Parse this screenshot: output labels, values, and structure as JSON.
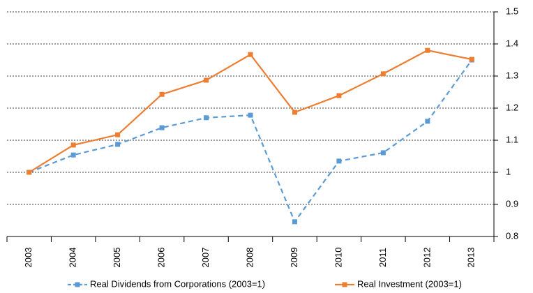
{
  "chart_data": {
    "type": "line",
    "categories": [
      "2003",
      "2004",
      "2005",
      "2006",
      "2007",
      "2008",
      "2009",
      "2010",
      "2011",
      "2012",
      "2013"
    ],
    "series": [
      {
        "name": "Real Dividends from Corporations (2003=1)",
        "color": "#5b9bd5",
        "dashed": true,
        "values": [
          1.0,
          1.054,
          1.087,
          1.139,
          1.17,
          1.178,
          0.846,
          1.035,
          1.061,
          1.159,
          1.35
        ]
      },
      {
        "name": "Real Investment (2003=1)",
        "color": "#ed7d31",
        "dashed": false,
        "values": [
          1.0,
          1.085,
          1.117,
          1.243,
          1.287,
          1.367,
          1.187,
          1.239,
          1.307,
          1.38,
          1.352
        ]
      }
    ],
    "ylim": [
      0.8,
      1.5
    ],
    "yticks": [
      0.8,
      0.9,
      1,
      1.1,
      1.2,
      1.3,
      1.4,
      1.5
    ],
    "grid": true,
    "y_axis_side": "right",
    "legend": "bottom"
  }
}
